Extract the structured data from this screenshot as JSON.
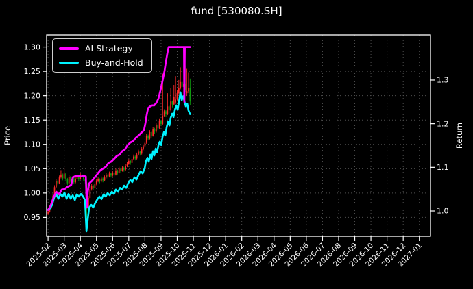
{
  "window": {
    "background": "#000000"
  },
  "chart_data": {
    "type": "candlestick+line",
    "title": "fund [530080.SH]",
    "legend": {
      "position": "upper-left",
      "entries": [
        {
          "label": "AI Strategy",
          "color": "#ff00ff"
        },
        {
          "label": "Buy-and-Hold",
          "color": "#00f2ff"
        }
      ]
    },
    "price_axis": {
      "label": "Price",
      "ticks": [
        0.95,
        1.0,
        1.05,
        1.1,
        1.15,
        1.2,
        1.25,
        1.3
      ],
      "range": [
        0.9112,
        1.3247
      ]
    },
    "return_axis": {
      "label": "Return",
      "ticks": [
        1.0,
        1.1,
        1.2,
        1.3
      ],
      "range": [
        0.9419,
        1.4036
      ]
    },
    "x_axis": {
      "tick_labels": [
        "2025-02",
        "2025-03",
        "2025-04",
        "2025-05",
        "2025-06",
        "2025-07",
        "2025-08",
        "2025-09",
        "2025-10",
        "2025-11",
        "2025-12",
        "2026-01",
        "2026-02",
        "2026-03",
        "2026-04",
        "2026-05",
        "2026-06",
        "2026-07",
        "2026-08",
        "2026-09",
        "2026-10",
        "2026-11",
        "2026-12",
        "2027-01"
      ],
      "range_months": [
        -0.089,
        23.691
      ],
      "data_span_months": [
        0,
        8.8
      ]
    },
    "grid": {
      "on": true,
      "color": "#4f4f4f",
      "style": "dotted"
    },
    "colors": {
      "up_candle": "#ff2a2a",
      "down_candle": "#0f9b0f",
      "ai_strategy": "#ff00ff",
      "buy_and_hold": "#00f2ff",
      "axis_text": "#ffffff",
      "spine": "#ffffff",
      "background": "#000000"
    },
    "series": [
      {
        "name": "AI Strategy",
        "axis": "return",
        "type": "line",
        "points": [
          [
            0.0,
            1.002
          ],
          [
            0.17,
            1.013
          ],
          [
            0.34,
            1.031
          ],
          [
            0.51,
            1.044
          ],
          [
            0.68,
            1.038
          ],
          [
            0.85,
            1.049
          ],
          [
            1.02,
            1.05
          ],
          [
            1.19,
            1.055
          ],
          [
            1.36,
            1.058
          ],
          [
            1.44,
            1.06
          ],
          [
            1.53,
            1.077
          ],
          [
            1.7,
            1.08
          ],
          [
            1.87,
            1.08
          ],
          [
            2.04,
            1.079
          ],
          [
            2.21,
            1.08
          ],
          [
            2.34,
            1.079
          ],
          [
            2.4,
            1.008
          ],
          [
            2.46,
            1.044
          ],
          [
            2.55,
            1.063
          ],
          [
            2.72,
            1.069
          ],
          [
            2.89,
            1.077
          ],
          [
            3.06,
            1.085
          ],
          [
            3.23,
            1.093
          ],
          [
            3.4,
            1.097
          ],
          [
            3.57,
            1.101
          ],
          [
            3.74,
            1.11
          ],
          [
            3.91,
            1.113
          ],
          [
            4.08,
            1.119
          ],
          [
            4.25,
            1.126
          ],
          [
            4.42,
            1.129
          ],
          [
            4.59,
            1.137
          ],
          [
            4.76,
            1.141
          ],
          [
            4.93,
            1.151
          ],
          [
            5.1,
            1.157
          ],
          [
            5.27,
            1.16
          ],
          [
            5.44,
            1.168
          ],
          [
            5.61,
            1.173
          ],
          [
            5.77,
            1.179
          ],
          [
            5.94,
            1.185
          ],
          [
            6.03,
            1.201
          ],
          [
            6.11,
            1.22
          ],
          [
            6.2,
            1.236
          ],
          [
            6.33,
            1.24
          ],
          [
            6.45,
            1.242
          ],
          [
            6.58,
            1.242
          ],
          [
            6.71,
            1.248
          ],
          [
            6.84,
            1.258
          ],
          [
            6.96,
            1.276
          ],
          [
            7.09,
            1.298
          ],
          [
            7.22,
            1.322
          ],
          [
            7.3,
            1.342
          ],
          [
            7.39,
            1.361
          ],
          [
            7.47,
            1.376
          ],
          [
            7.7,
            1.376
          ],
          [
            8.0,
            1.376
          ],
          [
            8.3,
            1.376
          ],
          [
            8.42,
            1.376
          ],
          [
            8.44,
            1.25
          ],
          [
            8.47,
            1.376
          ],
          [
            8.8,
            1.376
          ]
        ]
      },
      {
        "name": "Buy-and-Hold",
        "axis": "return",
        "type": "line",
        "points": [
          [
            0.0,
            1.003
          ],
          [
            0.13,
            1.006
          ],
          [
            0.25,
            1.014
          ],
          [
            0.38,
            1.031
          ],
          [
            0.51,
            1.038
          ],
          [
            0.64,
            1.028
          ],
          [
            0.76,
            1.039
          ],
          [
            0.89,
            1.033
          ],
          [
            1.02,
            1.042
          ],
          [
            1.15,
            1.028
          ],
          [
            1.27,
            1.039
          ],
          [
            1.4,
            1.028
          ],
          [
            1.53,
            1.036
          ],
          [
            1.66,
            1.025
          ],
          [
            1.78,
            1.038
          ],
          [
            1.91,
            1.033
          ],
          [
            2.04,
            1.039
          ],
          [
            2.17,
            1.033
          ],
          [
            2.29,
            1.025
          ],
          [
            2.38,
            0.953
          ],
          [
            2.46,
            0.981
          ],
          [
            2.55,
            1.008
          ],
          [
            2.68,
            1.014
          ],
          [
            2.8,
            1.008
          ],
          [
            2.93,
            1.019
          ],
          [
            3.06,
            1.027
          ],
          [
            3.18,
            1.033
          ],
          [
            3.31,
            1.027
          ],
          [
            3.44,
            1.038
          ],
          [
            3.57,
            1.033
          ],
          [
            3.69,
            1.041
          ],
          [
            3.82,
            1.036
          ],
          [
            3.95,
            1.044
          ],
          [
            4.08,
            1.039
          ],
          [
            4.2,
            1.049
          ],
          [
            4.33,
            1.044
          ],
          [
            4.46,
            1.053
          ],
          [
            4.59,
            1.049
          ],
          [
            4.71,
            1.058
          ],
          [
            4.84,
            1.053
          ],
          [
            4.97,
            1.064
          ],
          [
            5.1,
            1.071
          ],
          [
            5.22,
            1.066
          ],
          [
            5.35,
            1.077
          ],
          [
            5.48,
            1.072
          ],
          [
            5.61,
            1.083
          ],
          [
            5.73,
            1.091
          ],
          [
            5.86,
            1.086
          ],
          [
            5.99,
            1.099
          ],
          [
            6.07,
            1.115
          ],
          [
            6.16,
            1.122
          ],
          [
            6.24,
            1.113
          ],
          [
            6.33,
            1.129
          ],
          [
            6.41,
            1.119
          ],
          [
            6.5,
            1.137
          ],
          [
            6.58,
            1.127
          ],
          [
            6.67,
            1.143
          ],
          [
            6.75,
            1.135
          ],
          [
            6.84,
            1.151
          ],
          [
            6.92,
            1.159
          ],
          [
            7.01,
            1.151
          ],
          [
            7.09,
            1.17
          ],
          [
            7.18,
            1.181
          ],
          [
            7.26,
            1.173
          ],
          [
            7.35,
            1.193
          ],
          [
            7.43,
            1.204
          ],
          [
            7.52,
            1.196
          ],
          [
            7.6,
            1.214
          ],
          [
            7.69,
            1.223
          ],
          [
            7.77,
            1.215
          ],
          [
            7.86,
            1.232
          ],
          [
            7.94,
            1.242
          ],
          [
            8.03,
            1.232
          ],
          [
            8.11,
            1.251
          ],
          [
            8.2,
            1.272
          ],
          [
            8.28,
            1.254
          ],
          [
            8.37,
            1.263
          ],
          [
            8.45,
            1.251
          ],
          [
            8.53,
            1.24
          ],
          [
            8.62,
            1.246
          ],
          [
            8.7,
            1.23
          ],
          [
            8.8,
            1.222
          ]
        ]
      }
    ],
    "candles": {
      "axis": "price",
      "ohlc": [
        [
          0.0,
          0.958,
          0.966,
          0.955,
          0.962
        ],
        [
          0.1,
          0.962,
          0.973,
          0.96,
          0.97
        ],
        [
          0.2,
          0.97,
          0.984,
          0.968,
          0.98
        ],
        [
          0.3,
          0.98,
          0.998,
          0.978,
          0.994
        ],
        [
          0.4,
          0.994,
          1.016,
          0.992,
          1.012
        ],
        [
          0.5,
          1.012,
          1.029,
          1.01,
          1.025
        ],
        [
          0.6,
          1.025,
          1.027,
          1.016,
          1.02
        ],
        [
          0.7,
          1.02,
          1.036,
          1.018,
          1.032
        ],
        [
          0.8,
          1.032,
          1.047,
          1.03,
          1.038
        ],
        [
          0.9,
          1.038,
          1.04,
          1.026,
          1.03
        ],
        [
          1.0,
          1.03,
          1.052,
          1.028,
          1.04
        ],
        [
          1.1,
          1.04,
          1.042,
          1.024,
          1.028
        ],
        [
          1.2,
          1.028,
          1.031,
          1.016,
          1.02
        ],
        [
          1.3,
          1.02,
          1.037,
          1.018,
          1.033
        ],
        [
          1.4,
          1.033,
          1.035,
          1.019,
          1.023
        ],
        [
          1.5,
          1.023,
          1.034,
          1.021,
          1.03
        ],
        [
          1.6,
          1.03,
          1.032,
          1.018,
          1.022
        ],
        [
          1.7,
          1.022,
          1.032,
          1.02,
          1.028
        ],
        [
          1.8,
          1.028,
          1.038,
          1.026,
          1.033
        ],
        [
          1.9,
          1.033,
          1.035,
          1.025,
          1.029
        ],
        [
          2.0,
          1.029,
          1.042,
          1.027,
          1.038
        ],
        [
          2.1,
          1.038,
          1.04,
          1.03,
          1.034
        ],
        [
          2.2,
          1.034,
          1.036,
          1.024,
          1.028
        ],
        [
          2.3,
          1.028,
          1.03,
          1.02,
          1.025
        ],
        [
          2.4,
          1.02,
          1.022,
          0.922,
          0.967
        ],
        [
          2.5,
          0.967,
          0.994,
          0.964,
          0.99
        ],
        [
          2.6,
          0.99,
          1.012,
          0.988,
          1.008
        ],
        [
          2.7,
          1.008,
          1.019,
          1.005,
          1.015
        ],
        [
          2.8,
          1.015,
          1.017,
          1.006,
          1.01
        ],
        [
          2.9,
          1.01,
          1.022,
          1.008,
          1.018
        ],
        [
          3.0,
          1.018,
          1.028,
          1.016,
          1.024
        ],
        [
          3.1,
          1.024,
          1.032,
          1.022,
          1.028
        ],
        [
          3.2,
          1.028,
          1.03,
          1.02,
          1.024
        ],
        [
          3.3,
          1.024,
          1.034,
          1.022,
          1.03
        ],
        [
          3.4,
          1.03,
          1.032,
          1.022,
          1.026
        ],
        [
          3.5,
          1.026,
          1.036,
          1.024,
          1.032
        ],
        [
          3.6,
          1.032,
          1.041,
          1.03,
          1.037
        ],
        [
          3.7,
          1.037,
          1.039,
          1.03,
          1.034
        ],
        [
          3.8,
          1.034,
          1.044,
          1.032,
          1.04
        ],
        [
          3.9,
          1.04,
          1.042,
          1.032,
          1.036
        ],
        [
          4.0,
          1.036,
          1.046,
          1.034,
          1.042
        ],
        [
          4.1,
          1.042,
          1.044,
          1.034,
          1.038
        ],
        [
          4.2,
          1.038,
          1.05,
          1.036,
          1.046
        ],
        [
          4.3,
          1.046,
          1.048,
          1.038,
          1.042
        ],
        [
          4.4,
          1.042,
          1.054,
          1.04,
          1.05
        ],
        [
          4.5,
          1.05,
          1.052,
          1.042,
          1.046
        ],
        [
          4.6,
          1.046,
          1.056,
          1.044,
          1.052
        ],
        [
          4.7,
          1.052,
          1.054,
          1.044,
          1.048
        ],
        [
          4.8,
          1.048,
          1.059,
          1.046,
          1.055
        ],
        [
          4.9,
          1.055,
          1.064,
          1.053,
          1.06
        ],
        [
          5.0,
          1.06,
          1.07,
          1.058,
          1.066
        ],
        [
          5.1,
          1.066,
          1.068,
          1.058,
          1.062
        ],
        [
          5.2,
          1.062,
          1.074,
          1.06,
          1.07
        ],
        [
          5.3,
          1.07,
          1.079,
          1.068,
          1.075
        ],
        [
          5.4,
          1.075,
          1.077,
          1.067,
          1.071
        ],
        [
          5.5,
          1.071,
          1.083,
          1.069,
          1.079
        ],
        [
          5.6,
          1.079,
          1.089,
          1.077,
          1.085
        ],
        [
          5.7,
          1.085,
          1.087,
          1.077,
          1.081
        ],
        [
          5.8,
          1.081,
          1.094,
          1.079,
          1.09
        ],
        [
          5.9,
          1.09,
          1.1,
          1.088,
          1.096
        ],
        [
          6.0,
          1.096,
          1.107,
          1.094,
          1.103
        ],
        [
          6.1,
          1.103,
          1.122,
          1.101,
          1.118
        ],
        [
          6.2,
          1.118,
          1.12,
          1.108,
          1.112
        ],
        [
          6.3,
          1.112,
          1.129,
          1.11,
          1.125
        ],
        [
          6.4,
          1.125,
          1.127,
          1.114,
          1.118
        ],
        [
          6.5,
          1.118,
          1.136,
          1.116,
          1.132
        ],
        [
          6.6,
          1.132,
          1.134,
          1.122,
          1.126
        ],
        [
          6.7,
          1.126,
          1.143,
          1.124,
          1.139
        ],
        [
          6.8,
          1.139,
          1.141,
          1.129,
          1.133
        ],
        [
          6.9,
          1.133,
          1.152,
          1.131,
          1.148
        ],
        [
          7.0,
          1.148,
          1.15,
          1.138,
          1.142
        ],
        [
          7.1,
          1.142,
          1.245,
          1.14,
          1.158
        ],
        [
          7.2,
          1.158,
          1.172,
          1.156,
          1.168
        ],
        [
          7.3,
          1.168,
          1.17,
          1.156,
          1.162
        ],
        [
          7.4,
          1.162,
          1.205,
          1.16,
          1.178
        ],
        [
          7.5,
          1.178,
          1.18,
          1.164,
          1.17
        ],
        [
          7.6,
          1.17,
          1.215,
          1.168,
          1.188
        ],
        [
          7.7,
          1.188,
          1.19,
          1.176,
          1.182
        ],
        [
          7.8,
          1.182,
          1.222,
          1.18,
          1.198
        ],
        [
          7.9,
          1.186,
          1.24,
          1.183,
          1.192
        ],
        [
          8.0,
          1.192,
          1.212,
          1.19,
          1.205
        ],
        [
          8.1,
          1.205,
          1.232,
          1.203,
          1.215
        ],
        [
          8.2,
          1.215,
          1.258,
          1.213,
          1.228
        ],
        [
          8.3,
          1.228,
          1.23,
          1.212,
          1.218
        ],
        [
          8.4,
          1.218,
          1.285,
          1.216,
          1.225
        ],
        [
          8.5,
          1.225,
          1.262,
          1.208,
          1.212
        ],
        [
          8.6,
          1.205,
          1.255,
          1.2,
          1.209
        ],
        [
          8.7,
          1.209,
          1.248,
          1.205,
          1.215
        ],
        [
          8.8,
          1.215,
          1.235,
          1.18,
          1.188
        ]
      ]
    }
  }
}
